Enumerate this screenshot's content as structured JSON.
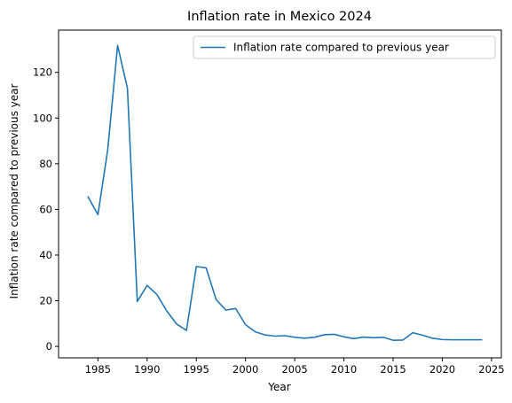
{
  "chart_data": {
    "type": "line",
    "title": "Inflation rate in Mexico 2024",
    "xlabel": "Year",
    "ylabel": "Inflation rate compared to previous year",
    "xlim": [
      1981,
      2026
    ],
    "ylim": [
      -5,
      138.5
    ],
    "x_ticks": [
      1985,
      1990,
      1995,
      2000,
      2005,
      2010,
      2015,
      2020,
      2025
    ],
    "y_ticks": [
      0,
      20,
      40,
      60,
      80,
      100,
      120
    ],
    "grid": false,
    "legend_position": "upper-right",
    "colors": {
      "series": "#1f77b4",
      "axes": "#000000"
    },
    "series": [
      {
        "name": "Inflation rate compared to previous year",
        "x": [
          1984,
          1985,
          1986,
          1987,
          1988,
          1989,
          1990,
          1991,
          1992,
          1993,
          1994,
          1995,
          1996,
          1997,
          1998,
          1999,
          2000,
          2001,
          2002,
          2003,
          2004,
          2005,
          2006,
          2007,
          2008,
          2009,
          2010,
          2011,
          2012,
          2013,
          2014,
          2015,
          2016,
          2017,
          2018,
          2019,
          2020,
          2021,
          2022,
          2023,
          2024
        ],
        "values": [
          65.5,
          57.7,
          86.2,
          131.8,
          113.0,
          19.7,
          26.7,
          22.7,
          15.5,
          9.8,
          7.0,
          35.0,
          34.4,
          20.6,
          15.9,
          16.6,
          9.5,
          6.4,
          5.0,
          4.5,
          4.7,
          4.0,
          3.6,
          4.0,
          5.1,
          5.3,
          4.2,
          3.4,
          4.1,
          3.8,
          4.0,
          2.7,
          2.8,
          6.0,
          4.9,
          3.6,
          3.0,
          2.9,
          2.9,
          2.9,
          2.9
        ]
      }
    ]
  }
}
